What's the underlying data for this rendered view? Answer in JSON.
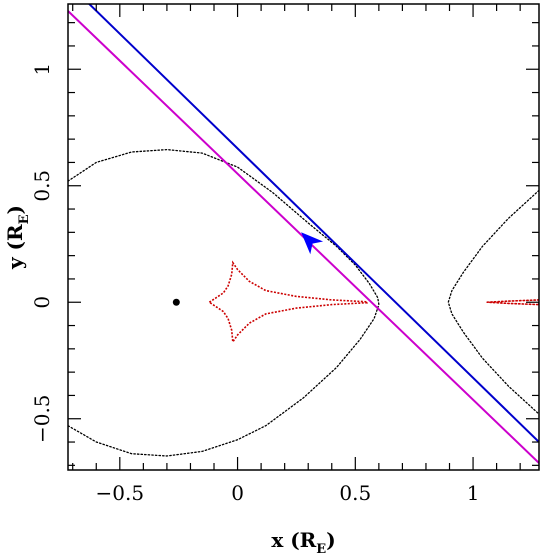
{
  "chart_data": {
    "type": "line",
    "title": "",
    "xlabel": {
      "main": "x (R",
      "sub": "E",
      "close": ")"
    },
    "ylabel": {
      "main": "y (R",
      "sub": "E",
      "close": ")"
    },
    "xlim": [
      -0.72,
      1.28
    ],
    "ylim": [
      -0.72,
      1.28
    ],
    "x_ticks": [
      {
        "value": -0.5,
        "label": "−0.5"
      },
      {
        "value": 0,
        "label": "0"
      },
      {
        "value": 0.5,
        "label": "0.5"
      },
      {
        "value": 1,
        "label": "1"
      }
    ],
    "y_ticks": [
      {
        "value": -0.5,
        "label": "−0.5"
      },
      {
        "value": 0,
        "label": "0"
      },
      {
        "value": 0.5,
        "label": "0.5"
      },
      {
        "value": 1,
        "label": "1"
      }
    ],
    "grid": false,
    "legend": "none",
    "lens_point": {
      "x": -0.26,
      "y": 0.0
    },
    "critical_curve_left": {
      "color": "#000000",
      "points": [
        [
          -0.72,
          0.52
        ],
        [
          -0.6,
          0.6
        ],
        [
          -0.45,
          0.645
        ],
        [
          -0.3,
          0.655
        ],
        [
          -0.15,
          0.64
        ],
        [
          0.0,
          0.58
        ],
        [
          0.15,
          0.47
        ],
        [
          0.3,
          0.34
        ],
        [
          0.42,
          0.24
        ],
        [
          0.5,
          0.16
        ],
        [
          0.56,
          0.08
        ],
        [
          0.595,
          0.02
        ],
        [
          0.6,
          -0.01
        ],
        [
          0.58,
          -0.07
        ],
        [
          0.52,
          -0.16
        ],
        [
          0.42,
          -0.28
        ],
        [
          0.28,
          -0.41
        ],
        [
          0.12,
          -0.53
        ],
        [
          0.0,
          -0.59
        ],
        [
          -0.15,
          -0.64
        ],
        [
          -0.3,
          -0.66
        ],
        [
          -0.45,
          -0.65
        ],
        [
          -0.6,
          -0.6
        ],
        [
          -0.72,
          -0.53
        ]
      ]
    },
    "critical_curve_right": {
      "color": "#000000",
      "points": [
        [
          1.28,
          0.48
        ],
        [
          1.15,
          0.36
        ],
        [
          1.04,
          0.24
        ],
        [
          0.96,
          0.13
        ],
        [
          0.91,
          0.05
        ],
        [
          0.895,
          0.0
        ],
        [
          0.91,
          -0.05
        ],
        [
          0.96,
          -0.13
        ],
        [
          1.04,
          -0.24
        ],
        [
          1.15,
          -0.36
        ],
        [
          1.28,
          -0.48
        ]
      ]
    },
    "caustic": {
      "color": "#cc0000",
      "points": [
        [
          -0.12,
          0.0
        ],
        [
          -0.09,
          0.02
        ],
        [
          -0.06,
          0.04
        ],
        [
          -0.04,
          0.07
        ],
        [
          -0.025,
          0.12
        ],
        [
          -0.02,
          0.17
        ],
        [
          0.0,
          0.14
        ],
        [
          0.05,
          0.09
        ],
        [
          0.12,
          0.05
        ],
        [
          0.25,
          0.025
        ],
        [
          0.4,
          0.01
        ],
        [
          0.55,
          0.002
        ],
        [
          0.55,
          -0.002
        ],
        [
          0.4,
          -0.01
        ],
        [
          0.25,
          -0.025
        ],
        [
          0.12,
          -0.05
        ],
        [
          0.05,
          -0.09
        ],
        [
          0.0,
          -0.14
        ],
        [
          -0.02,
          -0.17
        ],
        [
          -0.025,
          -0.12
        ],
        [
          -0.04,
          -0.07
        ],
        [
          -0.06,
          -0.04
        ],
        [
          -0.09,
          -0.02
        ],
        [
          -0.12,
          0.0
        ]
      ]
    },
    "caustic_right": {
      "color": "#cc0000",
      "points": [
        [
          1.06,
          0.0
        ],
        [
          1.15,
          0.005
        ],
        [
          1.28,
          0.01
        ],
        [
          1.28,
          -0.01
        ],
        [
          1.15,
          -0.005
        ],
        [
          1.06,
          0.0
        ]
      ]
    },
    "series": [
      {
        "color": "#0000cc",
        "x": [
          -0.65,
          1.28
        ],
        "y": [
          1.3,
          -0.6
        ]
      },
      {
        "color": "#cc00cc",
        "x": [
          -0.72,
          1.28
        ],
        "y": [
          1.25,
          -0.69
        ]
      }
    ],
    "arrow": {
      "color": "#0000ff",
      "x": 0.3,
      "y": 0.27,
      "direction": [
        -1,
        1
      ]
    }
  }
}
